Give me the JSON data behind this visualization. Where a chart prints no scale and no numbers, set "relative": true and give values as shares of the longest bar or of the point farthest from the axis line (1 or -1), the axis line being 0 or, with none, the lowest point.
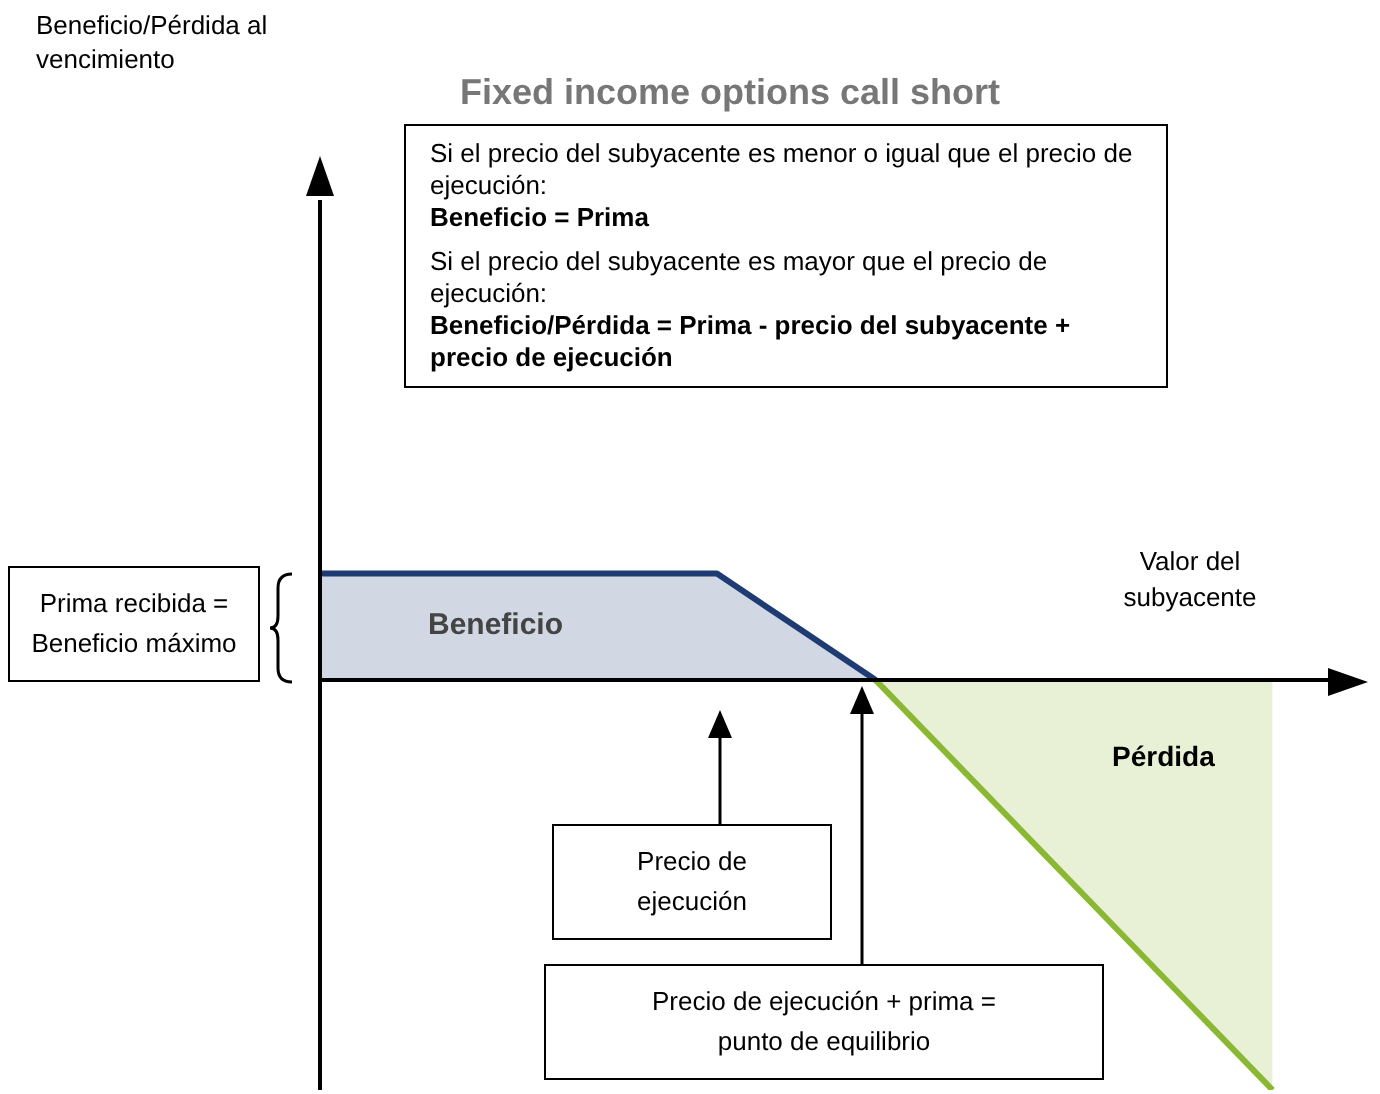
{
  "chart_data": {
    "type": "area",
    "title": "Fixed income options call short",
    "xlabel": "Valor del subyacente",
    "relative": true,
    "categories": [
      null,
      null,
      null,
      null,
      null,
      null,
      null,
      null,
      null,
      null,
      null,
      null,
      null,
      null
    ],
    "series": [
      {
        "color": "#1f3b73",
        "values": [
          0.26,
          0.26,
          0.26,
          0.26,
          0.26,
          0.26,
          0.13,
          0,
          null,
          null,
          null,
          null,
          null,
          null
        ]
      },
      {
        "color": "#8ab832",
        "values": [
          null,
          null,
          null,
          null,
          null,
          null,
          null,
          0,
          -0.2,
          -0.4,
          -0.6,
          -0.8,
          -1,
          null
        ]
      }
    ],
    "annotations": [
      "Si el precio del subyacente es menor o igual que el precio de ejecución:",
      "Beneficio = Prima",
      "Si el precio del subyacente es mayor que el precio de ejecución:",
      "Beneficio/Pérdida = Prima - precio del subyacente + precio de ejecución",
      "Prima recibida = Beneficio máximo",
      "Beneficio",
      "Pérdida",
      "Precio de ejecución",
      "Precio de ejecución + prima = punto de equilibrio",
      "Beneficio/Pérdida al vencimiento"
    ]
  }
}
